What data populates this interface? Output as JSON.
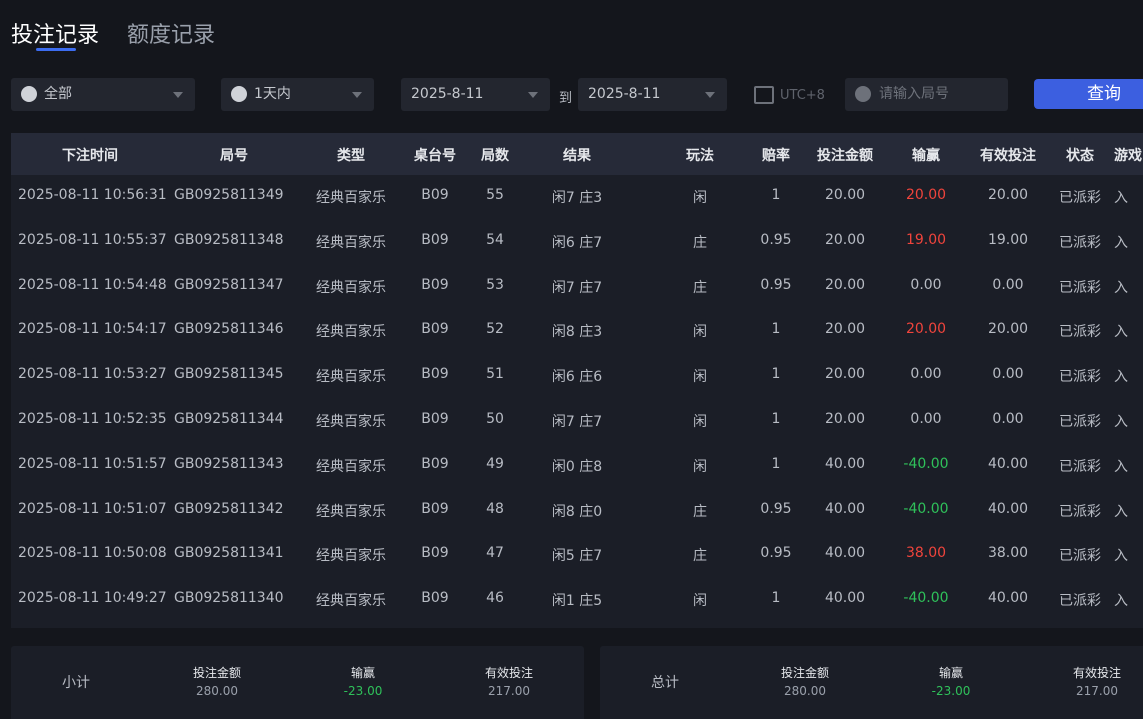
{
  "tabs": [
    "投注记录",
    "额度记录"
  ],
  "filters": {
    "scope": "全部",
    "period": "1天内",
    "date_from": "2025-8-11",
    "to": "到",
    "date_to": "2025-8-11",
    "timezone": "UTC+8",
    "round_placeholder": "请输入局号",
    "query_button": "查询"
  },
  "table": {
    "columns": [
      "下注时间",
      "局号",
      "类型",
      "桌台号",
      "局数",
      "结果",
      "玩法",
      "赔率",
      "投注金额",
      "输赢",
      "有效投注",
      "状态",
      "游戏"
    ],
    "rows": [
      [
        "2025-08-11 10:56:31",
        "GB0925811349",
        "经典百家乐",
        "B09",
        "55",
        "闲7 庄3",
        "闲",
        "1",
        "20.00",
        "20.00",
        "20.00",
        "已派彩",
        "入"
      ],
      [
        "2025-08-11 10:55:37",
        "GB0925811348",
        "经典百家乐",
        "B09",
        "54",
        "闲6 庄7",
        "庄",
        "0.95",
        "20.00",
        "19.00",
        "19.00",
        "已派彩",
        "入"
      ],
      [
        "2025-08-11 10:54:48",
        "GB0925811347",
        "经典百家乐",
        "B09",
        "53",
        "闲7 庄7",
        "庄",
        "0.95",
        "20.00",
        "0.00",
        "0.00",
        "已派彩",
        "入"
      ],
      [
        "2025-08-11 10:54:17",
        "GB0925811346",
        "经典百家乐",
        "B09",
        "52",
        "闲8 庄3",
        "闲",
        "1",
        "20.00",
        "20.00",
        "20.00",
        "已派彩",
        "入"
      ],
      [
        "2025-08-11 10:53:27",
        "GB0925811345",
        "经典百家乐",
        "B09",
        "51",
        "闲6 庄6",
        "闲",
        "1",
        "20.00",
        "0.00",
        "0.00",
        "已派彩",
        "入"
      ],
      [
        "2025-08-11 10:52:35",
        "GB0925811344",
        "经典百家乐",
        "B09",
        "50",
        "闲7 庄7",
        "闲",
        "1",
        "20.00",
        "0.00",
        "0.00",
        "已派彩",
        "入"
      ],
      [
        "2025-08-11 10:51:57",
        "GB0925811343",
        "经典百家乐",
        "B09",
        "49",
        "闲0 庄8",
        "闲",
        "1",
        "40.00",
        "-40.00",
        "40.00",
        "已派彩",
        "入"
      ],
      [
        "2025-08-11 10:51:07",
        "GB0925811342",
        "经典百家乐",
        "B09",
        "48",
        "闲8 庄0",
        "庄",
        "0.95",
        "40.00",
        "-40.00",
        "40.00",
        "已派彩",
        "入"
      ],
      [
        "2025-08-11 10:50:08",
        "GB0925811341",
        "经典百家乐",
        "B09",
        "47",
        "闲5 庄7",
        "庄",
        "0.95",
        "40.00",
        "38.00",
        "38.00",
        "已派彩",
        "入"
      ],
      [
        "2025-08-11 10:49:27",
        "GB0925811340",
        "经典百家乐",
        "B09",
        "46",
        "闲1 庄5",
        "闲",
        "1",
        "40.00",
        "-40.00",
        "40.00",
        "已派彩",
        "入"
      ]
    ]
  },
  "summary": [
    {
      "label": "小计",
      "items": [
        {
          "label": "投注金额",
          "value": "280.00"
        },
        {
          "label": "输赢",
          "value": "-23.00"
        },
        {
          "label": "有效投注",
          "value": "217.00"
        }
      ]
    },
    {
      "label": "总计",
      "items": [
        {
          "label": "投注金额",
          "value": "280.00"
        },
        {
          "label": "输赢",
          "value": "-23.00"
        },
        {
          "label": "有效投注",
          "value": "217.00"
        }
      ]
    }
  ]
}
